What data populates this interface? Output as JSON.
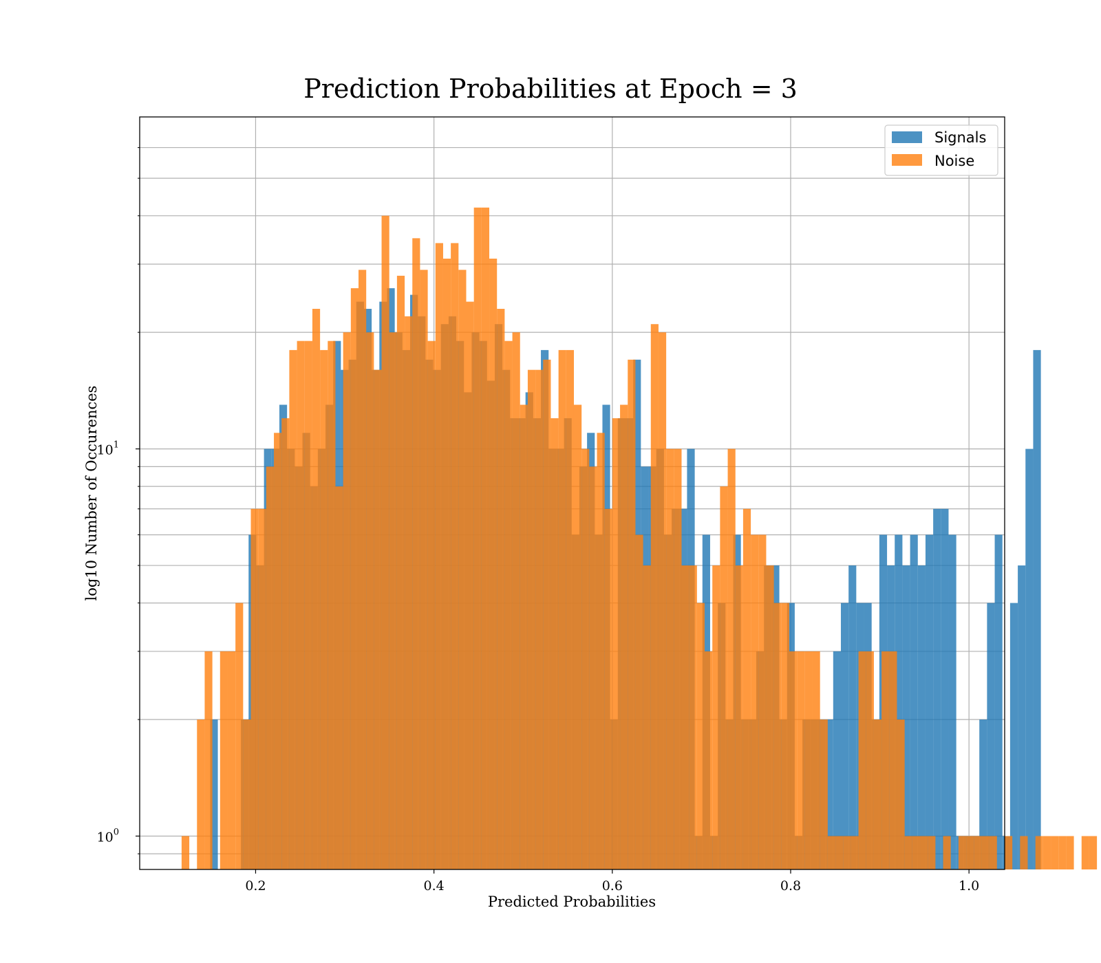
{
  "chart_data": {
    "type": "bar",
    "title": "Prediction Probabilities at Epoch = 3",
    "xlabel": "Predicted Probabilities",
    "ylabel": "log10 Number of Occurences",
    "xlim": [
      0.07,
      1.04
    ],
    "ylim": [
      0.82,
      72
    ],
    "yscale": "log",
    "grid": true,
    "legend_position": "top-right",
    "x_ticks": [
      {
        "value": 0.2,
        "label": "0.2"
      },
      {
        "value": 0.4,
        "label": "0.4"
      },
      {
        "value": 0.6,
        "label": "0.6"
      },
      {
        "value": 0.8,
        "label": "0.8"
      },
      {
        "value": 1.0,
        "label": "1.0"
      }
    ],
    "y_ticks": [
      {
        "value": 1,
        "base": "10",
        "exp": "0"
      },
      {
        "value": 10,
        "base": "10",
        "exp": "1"
      }
    ],
    "y_minor_ticks": [
      0.9,
      2,
      3,
      4,
      5,
      6,
      7,
      8,
      9,
      20,
      30,
      40,
      50,
      60
    ],
    "series": [
      {
        "name": "Signals",
        "color": "#1f77b4",
        "bin_start": 0.149,
        "bin_width": 0.008626,
        "values": [
          2,
          0,
          0,
          0,
          2,
          6,
          5,
          10,
          10,
          13,
          10,
          9,
          11,
          8,
          10,
          13,
          19,
          16,
          17,
          24,
          23,
          16,
          24,
          26,
          20,
          18,
          25,
          22,
          17,
          16,
          21,
          22,
          19,
          14,
          20,
          19,
          15,
          21,
          16,
          12,
          12,
          14,
          12,
          18,
          10,
          10,
          12,
          6,
          9,
          11,
          6,
          13,
          2,
          12,
          12,
          17,
          9,
          9,
          10,
          6,
          7,
          7,
          10,
          1,
          6,
          1,
          4,
          2,
          6,
          2,
          2,
          3,
          5,
          5,
          2,
          4,
          1,
          2,
          2,
          2,
          2,
          3,
          4,
          5,
          4,
          4,
          2,
          6,
          5,
          6,
          5,
          6,
          5,
          6,
          7,
          7,
          6,
          1,
          1,
          1,
          2,
          4,
          6,
          1,
          4,
          5,
          10,
          18
        ]
      },
      {
        "name": "Noise",
        "color": "#ff7f0e",
        "bin_start": 0.117,
        "bin_width": 0.008626,
        "values": [
          1,
          0,
          2,
          3,
          0,
          3,
          3,
          4,
          2,
          7,
          7,
          9,
          11,
          12,
          18,
          19,
          19,
          23,
          18,
          19,
          8,
          20,
          26,
          29,
          20,
          16,
          40,
          20,
          28,
          22,
          35,
          29,
          19,
          34,
          31,
          34,
          29,
          24,
          42,
          42,
          31,
          23,
          19,
          20,
          13,
          16,
          16,
          17,
          12,
          18,
          18,
          13,
          10,
          9,
          11,
          7,
          12,
          13,
          17,
          6,
          5,
          21,
          20,
          10,
          10,
          5,
          5,
          4,
          3,
          5,
          8,
          10,
          5,
          7,
          6,
          6,
          5,
          4,
          4,
          3,
          3,
          3,
          3,
          2,
          1,
          1,
          1,
          1,
          3,
          3,
          2,
          3,
          3,
          2,
          1,
          1,
          1,
          1,
          0,
          1,
          0,
          1,
          1,
          1,
          1,
          1,
          0,
          1,
          0,
          1,
          0,
          1,
          1,
          1,
          1,
          1,
          0,
          1,
          1,
          0,
          1
        ]
      }
    ]
  }
}
